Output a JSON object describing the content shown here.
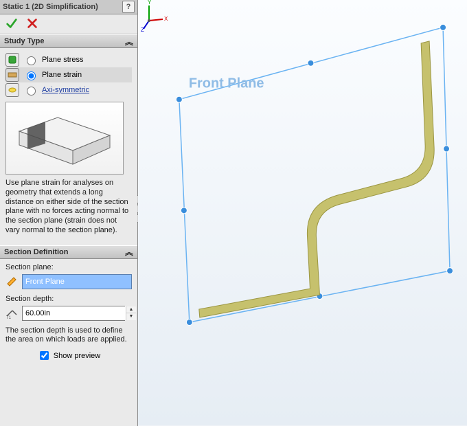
{
  "titlebar": {
    "title": "Static 1 (2D Simplification)"
  },
  "study_type": {
    "header": "Study Type",
    "options": [
      {
        "label": "Plane stress",
        "selected": false
      },
      {
        "label": "Plane strain",
        "selected": true
      },
      {
        "label": "Axi-symmetric",
        "selected": false,
        "link": true
      }
    ],
    "description": "Use plane strain for analyses on geometry that extends a long distance on either side of the section plane with no forces acting normal to the section plane (strain does not vary normal to the section plane)."
  },
  "section_def": {
    "header": "Section Definition",
    "plane_label": "Section plane:",
    "plane_value": "Front Plane",
    "depth_label": "Section depth:",
    "depth_value": "60.00in",
    "depth_note": "The section depth is used to define the area on which loads are applied.",
    "show_preview_label": "Show preview",
    "show_preview": true
  },
  "viewport": {
    "front_plane_label": "Front Plane",
    "colors": {
      "plane_edge": "#6ab3f2",
      "plane_handle": "#3a8edc",
      "part_fill": "#c6c16d",
      "part_edge": "#9b9642",
      "label": "#8fbce6",
      "x_axis": "#d00000",
      "y_axis": "#00a000",
      "z_axis": "#0000d0"
    }
  }
}
